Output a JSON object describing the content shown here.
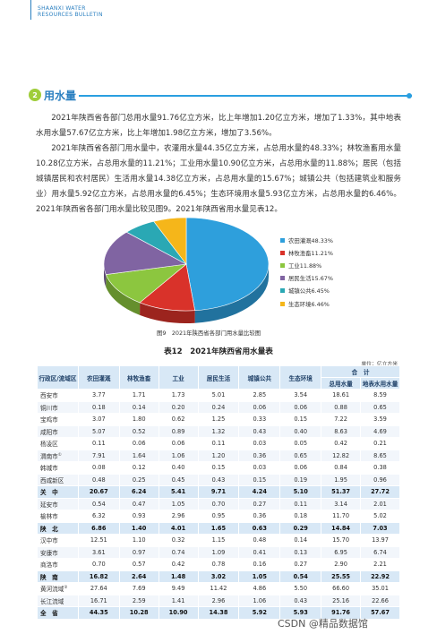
{
  "header": {
    "line1": "SHAANXI WATER",
    "line2": "RESOURCES BULLETIN"
  },
  "section": {
    "icon_glyph": "2",
    "title": "用水量"
  },
  "paragraphs": [
    "2021年陕西省各部门总用水量91.76亿立方米，比上年增加1.20亿立方米，增加了1.33%，其中地表水用水量57.67亿立方米，比上年增加1.98亿立方米，增加了3.56%。",
    "2021年陕西省各部门用水量中，农灌用水量44.35亿立方米，占总用水量的48.33%；林牧渔畜用水量10.28亿立方米，占总用水量的11.21%；工业用水量10.90亿立方米，占总用水量的11.88%；居民（包括城镇居民和农村居民）生活用水量14.38亿立方米，占总用水量的15.67%；城镇公共（包括建筑业和服务业）用水量5.92亿立方米，占总用水量的6.45%；生态环境用水量5.93亿立方米，占总用水量的6.46%。2021年陕西省各部门用水量比较见图9。2021年陕西省用水量见表12。"
  ],
  "chart_data": {
    "type": "pie",
    "slices": [
      {
        "label": "农田灌溉48.33%",
        "value": 48.33,
        "color": "#2e9fdc"
      },
      {
        "label": "林牧渔畜11.21%",
        "value": 11.21,
        "color": "#d9322a"
      },
      {
        "label": "工业11.88%",
        "value": 11.88,
        "color": "#8cc63f"
      },
      {
        "label": "居民生活15.67%",
        "value": 15.67,
        "color": "#8064a2"
      },
      {
        "label": "城镇公共6.45%",
        "value": 6.45,
        "color": "#2aa8b4"
      },
      {
        "label": "生态环境6.46%",
        "value": 6.46,
        "color": "#f5b61a"
      }
    ],
    "legend_position": "right"
  },
  "figure_caption": "图9　2021年陕西省各部门用水量比较图",
  "table": {
    "title": "表12　2021年陕西省用水量表",
    "unit": "单位：亿立方米",
    "headers": {
      "region": "行政区/流域区",
      "cols": [
        "农田灌溉",
        "林牧渔畜",
        "工业",
        "居民生活",
        "城镇公共",
        "生态环境"
      ],
      "total": "合　计",
      "total_sub": [
        "总用水量",
        "地表水用水量"
      ]
    },
    "rows": [
      {
        "name": "西安市",
        "sup": "",
        "type": "normal",
        "v": [
          "3.77",
          "1.71",
          "1.73",
          "5.01",
          "2.85",
          "3.54",
          "18.61",
          "8.59"
        ]
      },
      {
        "name": "铜川市",
        "sup": "",
        "type": "normal",
        "v": [
          "0.18",
          "0.14",
          "0.20",
          "0.24",
          "0.06",
          "0.06",
          "0.88",
          "0.65"
        ]
      },
      {
        "name": "宝鸡市",
        "sup": "",
        "type": "normal",
        "v": [
          "3.07",
          "1.80",
          "0.62",
          "1.25",
          "0.33",
          "0.15",
          "7.22",
          "3.59"
        ]
      },
      {
        "name": "咸阳市",
        "sup": "",
        "type": "normal",
        "v": [
          "5.07",
          "0.52",
          "0.89",
          "1.32",
          "0.43",
          "0.40",
          "8.63",
          "4.69"
        ]
      },
      {
        "name": "杨凌区",
        "sup": "",
        "type": "normal",
        "v": [
          "0.11",
          "0.06",
          "0.06",
          "0.11",
          "0.03",
          "0.05",
          "0.42",
          "0.21"
        ]
      },
      {
        "name": "渭南市",
        "sup": "①",
        "type": "normal",
        "v": [
          "7.91",
          "1.64",
          "1.06",
          "1.20",
          "0.36",
          "0.65",
          "12.82",
          "8.65"
        ]
      },
      {
        "name": "韩城市",
        "sup": "",
        "type": "normal",
        "v": [
          "0.08",
          "0.12",
          "0.40",
          "0.15",
          "0.03",
          "0.06",
          "0.84",
          "0.38"
        ]
      },
      {
        "name": "西咸新区",
        "sup": "",
        "type": "normal",
        "v": [
          "0.48",
          "0.25",
          "0.45",
          "0.43",
          "0.15",
          "0.19",
          "1.95",
          "0.96"
        ]
      },
      {
        "name": "关　中",
        "sup": "",
        "type": "sub",
        "v": [
          "20.67",
          "6.24",
          "5.41",
          "9.71",
          "4.24",
          "5.10",
          "51.37",
          "27.72"
        ]
      },
      {
        "name": "延安市",
        "sup": "",
        "type": "normal",
        "v": [
          "0.54",
          "0.47",
          "1.05",
          "0.70",
          "0.27",
          "0.11",
          "3.14",
          "2.01"
        ]
      },
      {
        "name": "榆林市",
        "sup": "",
        "type": "normal",
        "v": [
          "6.32",
          "0.93",
          "2.96",
          "0.95",
          "0.36",
          "0.18",
          "11.70",
          "5.02"
        ]
      },
      {
        "name": "陕　北",
        "sup": "",
        "type": "sub",
        "v": [
          "6.86",
          "1.40",
          "4.01",
          "1.65",
          "0.63",
          "0.29",
          "14.84",
          "7.03"
        ]
      },
      {
        "name": "汉中市",
        "sup": "",
        "type": "normal",
        "v": [
          "12.51",
          "1.10",
          "0.32",
          "1.15",
          "0.48",
          "0.14",
          "15.70",
          "13.97"
        ]
      },
      {
        "name": "安康市",
        "sup": "",
        "type": "normal",
        "v": [
          "3.61",
          "0.97",
          "0.74",
          "1.09",
          "0.41",
          "0.13",
          "6.95",
          "6.74"
        ]
      },
      {
        "name": "商洛市",
        "sup": "",
        "type": "normal",
        "v": [
          "0.70",
          "0.57",
          "0.42",
          "0.78",
          "0.16",
          "0.27",
          "2.90",
          "2.21"
        ]
      },
      {
        "name": "陕　南",
        "sup": "",
        "type": "sub",
        "v": [
          "16.82",
          "2.64",
          "1.48",
          "3.02",
          "1.05",
          "0.54",
          "25.55",
          "22.92"
        ]
      },
      {
        "name": "黄河流域",
        "sup": "②",
        "type": "normal",
        "v": [
          "27.64",
          "7.69",
          "9.49",
          "11.42",
          "4.86",
          "5.50",
          "66.60",
          "35.01"
        ]
      },
      {
        "name": "长江流域",
        "sup": "",
        "type": "normal",
        "v": [
          "16.71",
          "2.59",
          "1.41",
          "2.96",
          "1.06",
          "0.43",
          "25.16",
          "22.66"
        ]
      },
      {
        "name": "全　省",
        "sup": "",
        "type": "sub",
        "v": [
          "44.35",
          "10.28",
          "10.90",
          "14.38",
          "5.92",
          "5.93",
          "91.76",
          "57.67"
        ]
      }
    ]
  },
  "watermark": "CSDN @精品数据馆"
}
